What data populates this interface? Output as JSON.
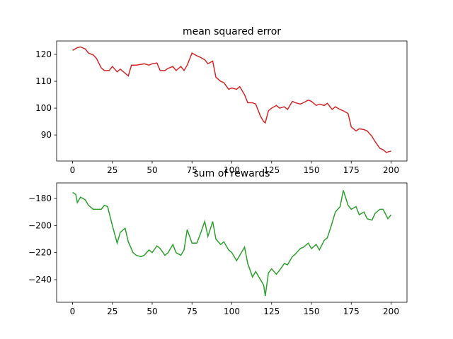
{
  "chart_data": [
    {
      "type": "line",
      "title": "mean squared error",
      "color": "#d62728",
      "x": [
        0,
        3,
        5,
        8,
        10,
        13,
        15,
        18,
        20,
        23,
        25,
        28,
        30,
        33,
        35,
        37,
        40,
        45,
        48,
        50,
        53,
        55,
        58,
        60,
        63,
        65,
        68,
        70,
        72,
        75,
        78,
        80,
        83,
        85,
        88,
        90,
        93,
        95,
        98,
        100,
        103,
        105,
        108,
        110,
        113,
        115,
        118,
        120,
        121,
        123,
        125,
        128,
        130,
        133,
        135,
        138,
        140,
        143,
        145,
        148,
        150,
        153,
        155,
        158,
        160,
        163,
        165,
        168,
        170,
        173,
        175,
        178,
        180,
        183,
        185,
        188,
        190,
        193,
        195,
        197,
        200
      ],
      "values": [
        121.5,
        122.5,
        122.8,
        122,
        120.5,
        119.8,
        118.5,
        115,
        114,
        114,
        115.5,
        113.5,
        114.5,
        113,
        112,
        116,
        116,
        116.5,
        116,
        116.5,
        116.8,
        114,
        114,
        114.8,
        115.5,
        114,
        115.5,
        114,
        116,
        120.5,
        119.5,
        119,
        118,
        116.5,
        117.5,
        111.5,
        110,
        109.5,
        107,
        107.5,
        107,
        108,
        105,
        102,
        102,
        101.5,
        97,
        95,
        94.5,
        99,
        100,
        101,
        100,
        100.5,
        99.5,
        102.5,
        102,
        101.5,
        102,
        103,
        102.5,
        101,
        101.5,
        101,
        101.8,
        99.5,
        100.5,
        99.5,
        99,
        98,
        93,
        91.5,
        92.3,
        92,
        91.5,
        89.5,
        87.5,
        85,
        84.5,
        83.5,
        84
      ],
      "xlim": [
        -10,
        210
      ],
      "ylim": [
        80.3,
        125
      ],
      "xticks": [
        0,
        25,
        50,
        75,
        100,
        125,
        150,
        175,
        200
      ],
      "yticks": [
        90,
        100,
        110,
        120
      ]
    },
    {
      "type": "line",
      "title": "sum of rewards",
      "color": "#2ca02c",
      "x": [
        0,
        2,
        3,
        5,
        8,
        10,
        13,
        15,
        18,
        20,
        22,
        25,
        28,
        30,
        33,
        35,
        38,
        40,
        43,
        45,
        48,
        50,
        53,
        55,
        58,
        60,
        63,
        65,
        68,
        70,
        72,
        75,
        78,
        80,
        83,
        85,
        88,
        90,
        93,
        95,
        98,
        100,
        103,
        105,
        108,
        110,
        113,
        115,
        118,
        120,
        121,
        123,
        125,
        128,
        130,
        133,
        135,
        138,
        140,
        143,
        145,
        148,
        150,
        153,
        155,
        158,
        160,
        163,
        165,
        168,
        170,
        173,
        175,
        178,
        180,
        183,
        185,
        188,
        190,
        193,
        195,
        198,
        200
      ],
      "values": [
        -175.5,
        -177,
        -183,
        -179,
        -181,
        -185,
        -188,
        -188,
        -188,
        -185,
        -186,
        -200,
        -213,
        -205,
        -202,
        -212,
        -220,
        -222,
        -223,
        -222,
        -218,
        -220,
        -215,
        -217,
        -222,
        -220,
        -214,
        -220,
        -222,
        -218,
        -203,
        -213,
        -213,
        -207,
        -197,
        -208,
        -197,
        -210,
        -214,
        -212,
        -218,
        -220,
        -226,
        -222,
        -216,
        -228,
        -238,
        -234,
        -240,
        -244,
        -252,
        -235,
        -232,
        -236,
        -233,
        -228,
        -229,
        -223,
        -221,
        -217,
        -216,
        -213,
        -217,
        -214,
        -218,
        -211,
        -209,
        -198,
        -190,
        -186,
        -174,
        -185,
        -188,
        -186,
        -192,
        -190,
        -195,
        -196,
        -191,
        -188,
        -188,
        -195,
        -192
      ],
      "xlim": [
        -10,
        210
      ],
      "ylim": [
        -256.7,
        -168.5
      ],
      "xticks": [
        0,
        25,
        50,
        75,
        100,
        125,
        150,
        175,
        200
      ],
      "yticks": [
        {
          "value": -240,
          "label": "−240"
        },
        {
          "value": -220,
          "label": "−220"
        },
        {
          "value": -200,
          "label": "−200"
        },
        {
          "value": -180,
          "label": "−180"
        }
      ]
    }
  ]
}
